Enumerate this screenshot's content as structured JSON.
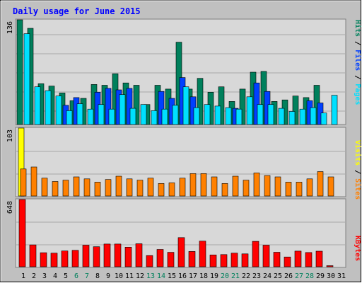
{
  "chart_data": [
    {
      "type": "bar",
      "title": "Daily usage for June 2015",
      "panel": "hits-files-pages",
      "scale_label": "136",
      "ylim": [
        0,
        136
      ],
      "series": [
        {
          "name": "Hits",
          "color": "#00805c",
          "values": [
            136,
            125,
            53,
            50,
            41,
            31,
            34,
            52,
            51,
            66,
            54,
            51,
            26,
            51,
            46,
            107,
            46,
            60,
            42,
            49,
            30,
            46,
            68,
            69,
            30,
            32,
            37,
            35,
            51,
            0
          ]
        },
        {
          "name": "Files",
          "color": "#0040ff",
          "values": [
            0,
            0,
            0,
            0,
            25,
            35,
            0,
            42,
            47,
            45,
            47,
            0,
            0,
            43,
            34,
            61,
            36,
            0,
            0,
            0,
            21,
            0,
            54,
            43,
            0,
            0,
            0,
            31,
            28,
            0
          ]
        },
        {
          "name": "Pages",
          "color": "#00e0ff",
          "values": [
            118,
            49,
            44,
            37,
            18,
            27,
            20,
            26,
            20,
            39,
            21,
            26,
            18,
            20,
            25,
            49,
            22,
            26,
            24,
            22,
            20,
            36,
            26,
            26,
            21,
            17,
            20,
            22,
            15,
            38
          ]
        }
      ]
    },
    {
      "type": "bar",
      "panel": "visits-sites",
      "scale_label": "103",
      "ylim": [
        0,
        103
      ],
      "series": [
        {
          "name": "Visits",
          "color": "#ffff00",
          "values": [
            103,
            0,
            0,
            0,
            0,
            0,
            0,
            0,
            0,
            0,
            0,
            0,
            0,
            0,
            0,
            0,
            0,
            0,
            0,
            0,
            0,
            0,
            0,
            0,
            0,
            0,
            0,
            0,
            0,
            0
          ]
        },
        {
          "name": "Sites",
          "color": "#ff8000",
          "values": [
            41,
            44,
            27,
            22,
            24,
            29,
            26,
            21,
            25,
            30,
            26,
            24,
            27,
            19,
            20,
            27,
            34,
            34,
            29,
            19,
            30,
            24,
            35,
            31,
            29,
            21,
            21,
            26,
            37,
            29
          ]
        }
      ]
    },
    {
      "type": "bar",
      "panel": "kbytes",
      "scale_label": "648",
      "ylim": [
        0,
        648
      ],
      "series": [
        {
          "name": "KBytes",
          "color": "#ff0000",
          "values": [
            648,
            211,
            135,
            131,
            152,
            158,
            208,
            193,
            219,
            219,
            189,
            222,
            108,
            167,
            139,
            281,
            147,
            247,
            114,
            117,
            131,
            124,
            245,
            208,
            140,
            94,
            151,
            137,
            150,
            10
          ]
        }
      ]
    }
  ],
  "x_labels": [
    "1",
    "2",
    "3",
    "4",
    "5",
    "6",
    "7",
    "8",
    "9",
    "10",
    "11",
    "12",
    "13",
    "14",
    "15",
    "16",
    "17",
    "18",
    "19",
    "20",
    "21",
    "22",
    "23",
    "24",
    "25",
    "26",
    "27",
    "28",
    "29",
    "30",
    "31"
  ],
  "weekend_days": [
    6,
    7,
    13,
    14,
    20,
    21,
    27,
    28
  ],
  "colors": {
    "title": "#0000ff",
    "background": "#c0c0c0",
    "panel_bg": "#d8d8d8",
    "weekday_label": "#000000",
    "weekend_label": "#00805c"
  }
}
